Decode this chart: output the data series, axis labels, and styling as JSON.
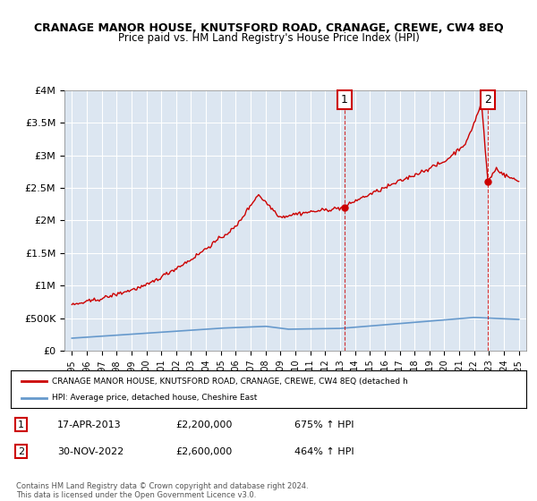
{
  "title": "CRANAGE MANOR HOUSE, KNUTSFORD ROAD, CRANAGE, CREWE, CW4 8EQ",
  "subtitle": "Price paid vs. HM Land Registry's House Price Index (HPI)",
  "background_color": "#dce6f1",
  "plot_bg_color": "#dce6f1",
  "xlim": [
    1994.5,
    2025.5
  ],
  "ylim": [
    0,
    4000000
  ],
  "yticks": [
    0,
    500000,
    1000000,
    1500000,
    2000000,
    2500000,
    3000000,
    3500000,
    4000000
  ],
  "ytick_labels": [
    "£0",
    "£500K",
    "£1M",
    "£1.5M",
    "£2M",
    "£2.5M",
    "£3M",
    "£3.5M",
    "£4M"
  ],
  "xtick_years": [
    1995,
    1996,
    1997,
    1998,
    1999,
    2000,
    2001,
    2002,
    2003,
    2004,
    2005,
    2006,
    2007,
    2008,
    2009,
    2010,
    2011,
    2012,
    2013,
    2014,
    2015,
    2016,
    2017,
    2018,
    2019,
    2020,
    2021,
    2022,
    2023,
    2024,
    2025
  ],
  "red_line_color": "#cc0000",
  "blue_line_color": "#6699cc",
  "point1_x": 2013.3,
  "point1_y": 2200000,
  "point2_x": 2022.92,
  "point2_y": 2600000,
  "point1_label": "1",
  "point2_label": "2",
  "legend_red": "CRANAGE MANOR HOUSE, KNUTSFORD ROAD, CRANAGE, CREWE, CW4 8EQ (detached h",
  "legend_blue": "HPI: Average price, detached house, Cheshire East",
  "annotation1": [
    "1",
    "17-APR-2013",
    "£2,200,000",
    "675% ↑ HPI"
  ],
  "annotation2": [
    "2",
    "30-NOV-2022",
    "£2,600,000",
    "464% ↑ HPI"
  ],
  "footer": "Contains HM Land Registry data © Crown copyright and database right 2024.\nThis data is licensed under the Open Government Licence v3.0."
}
